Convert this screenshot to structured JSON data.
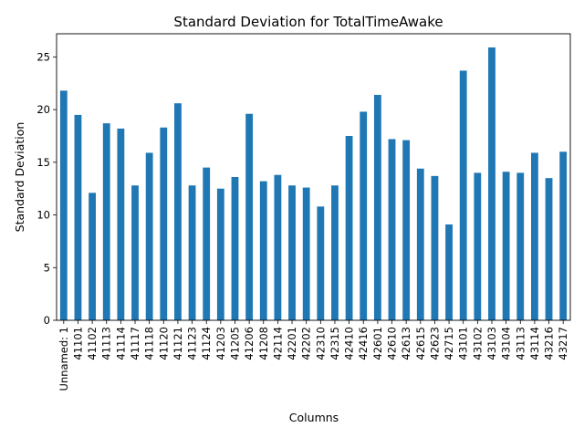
{
  "chart_data": {
    "type": "bar",
    "title": "Standard Deviation for TotalTimeAwake",
    "xlabel": "Columns",
    "ylabel": "Standard Deviation",
    "ylim": [
      0,
      27.2
    ],
    "yticks": [
      0,
      5,
      10,
      15,
      20,
      25
    ],
    "grid": false,
    "legend": "none",
    "bar_color": "#1f77b4",
    "categories": [
      "Unnamed: 1",
      "41101",
      "41102",
      "41113",
      "41114",
      "41117",
      "41118",
      "41120",
      "41121",
      "41123",
      "41124",
      "41203",
      "41205",
      "41206",
      "41208",
      "42114",
      "42201",
      "42202",
      "42310",
      "42315",
      "42410",
      "42416",
      "42601",
      "42610",
      "42613",
      "42615",
      "42623",
      "42715",
      "43101",
      "43102",
      "43103",
      "43104",
      "43113",
      "43114",
      "43216",
      "43217"
    ],
    "values": [
      21.8,
      19.5,
      12.1,
      18.7,
      18.2,
      12.8,
      15.9,
      18.3,
      20.6,
      12.8,
      14.5,
      12.5,
      13.6,
      19.6,
      13.2,
      13.8,
      12.8,
      12.6,
      10.8,
      12.8,
      17.5,
      19.8,
      21.4,
      17.2,
      17.1,
      14.4,
      13.7,
      9.1,
      23.7,
      14.0,
      25.9,
      14.1,
      14.0,
      15.9,
      13.5,
      16.0
    ]
  }
}
